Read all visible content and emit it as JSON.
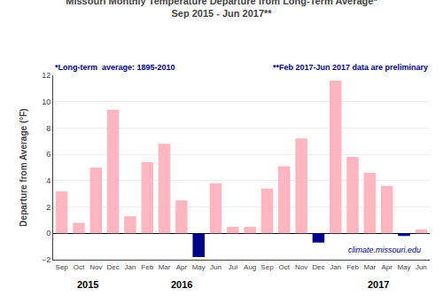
{
  "chart_data": {
    "type": "bar",
    "title": "Missouri Monthly Temperature Departure from Long-Term Average*",
    "subtitle": "Sep 2015 - Jun 2017**",
    "ylabel": "Departure from Average (°F)",
    "annotations": [
      "*Long-term  average: 1895-2010",
      "**Feb 2017-Jun 2017 data are preliminary",
      "climate.missouri.edu"
    ],
    "categories": [
      "Sep",
      "Oct",
      "Nov",
      "Dec",
      "Jan",
      "Feb",
      "Mar",
      "Apr",
      "May",
      "Jun",
      "Jul",
      "Aug",
      "Sep",
      "Oct",
      "Nov",
      "Dec",
      "Jan",
      "Feb",
      "Mar",
      "Apr",
      "May",
      "Jun"
    ],
    "year_labels": [
      {
        "label": "2015",
        "index": 1.5
      },
      {
        "label": "2016",
        "index": 7.0
      },
      {
        "label": "2017",
        "index": 18.5
      }
    ],
    "values": [
      3.2,
      0.8,
      5.0,
      9.4,
      1.3,
      5.4,
      6.8,
      2.5,
      -1.8,
      3.8,
      0.5,
      0.5,
      3.4,
      5.1,
      7.2,
      -0.7,
      11.6,
      5.8,
      4.6,
      3.6,
      -0.2,
      0.3
    ],
    "colors": [
      "#FFB6C1",
      "#FFB6C1",
      "#FFB6C1",
      "#FFB6C1",
      "#FFB6C1",
      "#FFB6C1",
      "#FFB6C1",
      "#FFB6C1",
      "#00008B",
      "#FFB6C1",
      "#FFB6C1",
      "#FFB6C1",
      "#FFB6C1",
      "#FFB6C1",
      "#FFB6C1",
      "#00008B",
      "#FFB6C1",
      "#FFB6C1",
      "#FFB6C1",
      "#FFB6C1",
      "#00008B",
      "#FFB6C1"
    ],
    "ylim": [
      -2.0,
      12.0
    ],
    "yticks": [
      -2.0,
      0.0,
      2.0,
      4.0,
      6.0,
      8.0,
      10.0,
      12.0
    ],
    "grid": true
  }
}
